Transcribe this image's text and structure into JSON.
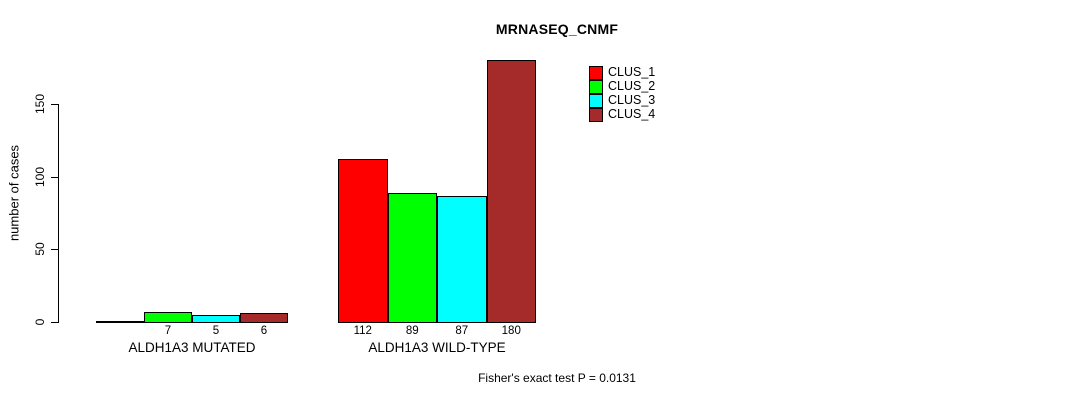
{
  "chart_data": {
    "type": "bar",
    "title": "MRNASEQ_CNMF",
    "ylabel": "number of cases",
    "xlabel": "",
    "ylim": [
      0,
      150
    ],
    "yticks": [
      0,
      50,
      100,
      150
    ],
    "grid": false,
    "legend_position": "top-right",
    "categories": [
      "ALDH1A3 MUTATED",
      "ALDH1A3 WILD-TYPE"
    ],
    "series": [
      {
        "name": "CLUS_1",
        "color": "#FF0000",
        "values": [
          0,
          112
        ]
      },
      {
        "name": "CLUS_2",
        "color": "#00FF00",
        "values": [
          7,
          89
        ]
      },
      {
        "name": "CLUS_3",
        "color": "#00FFFF",
        "values": [
          5,
          87
        ]
      },
      {
        "name": "CLUS_4",
        "color": "#A52A2A",
        "values": [
          6,
          180
        ]
      }
    ],
    "bar_value_labels": [
      [
        "",
        "7",
        "5",
        "6"
      ],
      [
        "112",
        "89",
        "87",
        "180"
      ]
    ],
    "annotation": "Fisher's exact test P = 0.0131"
  }
}
